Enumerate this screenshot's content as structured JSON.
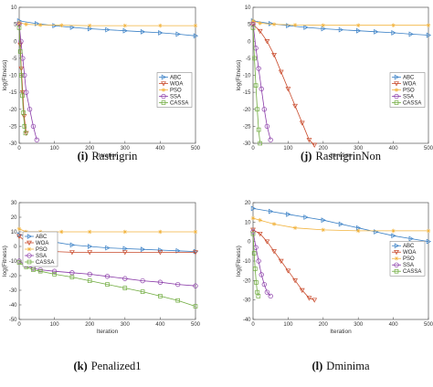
{
  "colors": {
    "ABC": "#3a80c6",
    "WOA": "#c94a2b",
    "PSO": "#f2b33d",
    "SSA": "#8a3ba8",
    "CASSA": "#6fab3e"
  },
  "chart_data": [
    {
      "type": "line",
      "caption_letter": "(i)",
      "caption_name": "Rastrigrin",
      "xlabel": "Iteration",
      "ylabel": "log(Fitness)",
      "xlim": [
        0,
        500
      ],
      "ylim": [
        -30,
        10
      ],
      "xticks": [
        0,
        100,
        200,
        300,
        400,
        500
      ],
      "yticks": [
        -30,
        -25,
        -20,
        -15,
        -10,
        -5,
        0,
        5,
        10
      ],
      "legend": "right",
      "series": [
        {
          "name": "ABC",
          "marker": "triangle-right",
          "x": [
            0,
            50,
            100,
            150,
            200,
            250,
            300,
            350,
            400,
            450,
            500
          ],
          "y": [
            6,
            5.2,
            4.6,
            4.1,
            3.7,
            3.4,
            3.1,
            2.8,
            2.5,
            2.1,
            1.6
          ]
        },
        {
          "name": "WOA",
          "marker": "triangle-down",
          "x": [
            0,
            3,
            6,
            10,
            14,
            20
          ],
          "y": [
            5,
            -1,
            -8,
            -15,
            -22,
            -27
          ]
        },
        {
          "name": "PSO",
          "marker": "star",
          "x": [
            0,
            20,
            60,
            120,
            200,
            300,
            400,
            500
          ],
          "y": [
            5.5,
            5,
            4.8,
            4.7,
            4.6,
            4.6,
            4.6,
            4.6
          ]
        },
        {
          "name": "SSA",
          "marker": "circle",
          "x": [
            0,
            5,
            10,
            15,
            20,
            30,
            40,
            50
          ],
          "y": [
            5,
            0,
            -5,
            -10,
            -15,
            -20,
            -25,
            -29
          ]
        },
        {
          "name": "CASSA",
          "marker": "square",
          "x": [
            0,
            3,
            6,
            9,
            12,
            15,
            18
          ],
          "y": [
            4,
            -3,
            -10,
            -16,
            -21,
            -25,
            -27
          ]
        }
      ]
    },
    {
      "type": "line",
      "caption_letter": "(j)",
      "caption_name": "RastrigrinNon",
      "xlabel": "Iteration",
      "ylabel": "log(Fitness)",
      "xlim": [
        0,
        500
      ],
      "ylim": [
        -30,
        10
      ],
      "xticks": [
        0,
        100,
        200,
        300,
        400,
        500
      ],
      "yticks": [
        -30,
        -25,
        -20,
        -15,
        -10,
        -5,
        0,
        5,
        10
      ],
      "legend": "right",
      "series": [
        {
          "name": "ABC",
          "marker": "triangle-right",
          "x": [
            0,
            50,
            100,
            150,
            200,
            250,
            300,
            350,
            400,
            450,
            500
          ],
          "y": [
            6,
            5.2,
            4.6,
            4.1,
            3.7,
            3.4,
            3.1,
            2.8,
            2.5,
            2.1,
            1.8
          ]
        },
        {
          "name": "WOA",
          "marker": "triangle-down",
          "x": [
            0,
            20,
            40,
            60,
            80,
            100,
            120,
            140,
            160,
            175
          ],
          "y": [
            5,
            3,
            0,
            -4,
            -9,
            -14,
            -19,
            -24,
            -29,
            -30.5
          ]
        },
        {
          "name": "PSO",
          "marker": "star",
          "x": [
            0,
            20,
            60,
            120,
            200,
            300,
            400,
            500
          ],
          "y": [
            6,
            5.3,
            5,
            4.8,
            4.7,
            4.7,
            4.7,
            4.7
          ]
        },
        {
          "name": "SSA",
          "marker": "circle",
          "x": [
            0,
            8,
            16,
            24,
            32,
            40,
            50
          ],
          "y": [
            5,
            -2,
            -8,
            -14,
            -20,
            -25,
            -29
          ]
        },
        {
          "name": "CASSA",
          "marker": "square",
          "x": [
            0,
            4,
            8,
            12,
            16,
            20
          ],
          "y": [
            4,
            -5,
            -13,
            -20,
            -26,
            -30
          ]
        }
      ]
    },
    {
      "type": "line",
      "caption_letter": "(k)",
      "caption_name": "Penalized1",
      "xlabel": "Iteration",
      "ylabel": "log(Fitness)",
      "xlim": [
        0,
        500
      ],
      "ylim": [
        -50,
        30
      ],
      "xticks": [
        0,
        100,
        200,
        300,
        400,
        500
      ],
      "yticks": [
        -50,
        -40,
        -30,
        -20,
        -10,
        0,
        10,
        20,
        30
      ],
      "legend": "left",
      "series": [
        {
          "name": "ABC",
          "marker": "triangle-right",
          "x": [
            0,
            50,
            100,
            150,
            200,
            250,
            300,
            350,
            400,
            450,
            500
          ],
          "y": [
            8,
            6,
            3,
            1,
            0,
            -1,
            -1.5,
            -2,
            -2.5,
            -3,
            -3.5
          ]
        },
        {
          "name": "WOA",
          "marker": "triangle-down",
          "x": [
            0,
            20,
            40,
            60,
            80,
            100,
            150,
            200,
            300,
            400,
            500
          ],
          "y": [
            7,
            3,
            0,
            -2,
            -3,
            -3.5,
            -4,
            -4,
            -4,
            -4,
            -4
          ]
        },
        {
          "name": "PSO",
          "marker": "star",
          "x": [
            0,
            20,
            60,
            120,
            200,
            300,
            400,
            500
          ],
          "y": [
            12,
            10,
            10,
            10,
            10,
            10,
            10,
            10
          ]
        },
        {
          "name": "SSA",
          "marker": "circle",
          "x": [
            0,
            20,
            40,
            60,
            100,
            150,
            200,
            250,
            300,
            350,
            400,
            450,
            500
          ],
          "y": [
            -10,
            -13,
            -15,
            -16,
            -17,
            -18,
            -19,
            -20.5,
            -22,
            -23.5,
            -24.5,
            -26,
            -27
          ]
        },
        {
          "name": "CASSA",
          "marker": "square",
          "x": [
            0,
            20,
            40,
            60,
            100,
            150,
            200,
            250,
            300,
            350,
            400,
            450,
            500
          ],
          "y": [
            -11,
            -14,
            -16,
            -17,
            -19,
            -21,
            -23.5,
            -26,
            -28.5,
            -31,
            -34,
            -37,
            -41
          ]
        }
      ]
    },
    {
      "type": "line",
      "caption_letter": "(l)",
      "caption_name": "Dminima",
      "xlabel": "Iteration",
      "ylabel": "log(Fitness)",
      "xlim": [
        0,
        500
      ],
      "ylim": [
        -40,
        20
      ],
      "xticks": [
        0,
        100,
        200,
        300,
        400,
        500
      ],
      "yticks": [
        -40,
        -30,
        -20,
        -10,
        0,
        10,
        20
      ],
      "legend": "right",
      "series": [
        {
          "name": "ABC",
          "marker": "triangle-right",
          "x": [
            0,
            50,
            100,
            150,
            200,
            250,
            300,
            350,
            400,
            450,
            500
          ],
          "y": [
            17,
            15.5,
            14,
            12.5,
            11,
            9,
            7,
            5,
            3,
            1.5,
            0
          ]
        },
        {
          "name": "WOA",
          "marker": "triangle-down",
          "x": [
            0,
            20,
            40,
            60,
            80,
            100,
            120,
            140,
            160,
            175
          ],
          "y": [
            6,
            4,
            0,
            -5,
            -10,
            -15,
            -20,
            -25,
            -29,
            -30
          ]
        },
        {
          "name": "PSO",
          "marker": "star",
          "x": [
            0,
            20,
            60,
            120,
            200,
            300,
            400,
            500
          ],
          "y": [
            12,
            11,
            9,
            7,
            6,
            5.5,
            5.5,
            5.5
          ]
        },
        {
          "name": "SSA",
          "marker": "circle",
          "x": [
            0,
            8,
            16,
            24,
            32,
            40,
            50
          ],
          "y": [
            5,
            -3,
            -10,
            -17,
            -22,
            -26,
            -28
          ]
        },
        {
          "name": "CASSA",
          "marker": "square",
          "x": [
            0,
            3,
            6,
            9,
            12,
            15
          ],
          "y": [
            4,
            -6,
            -14,
            -21,
            -26,
            -28
          ]
        }
      ]
    }
  ]
}
